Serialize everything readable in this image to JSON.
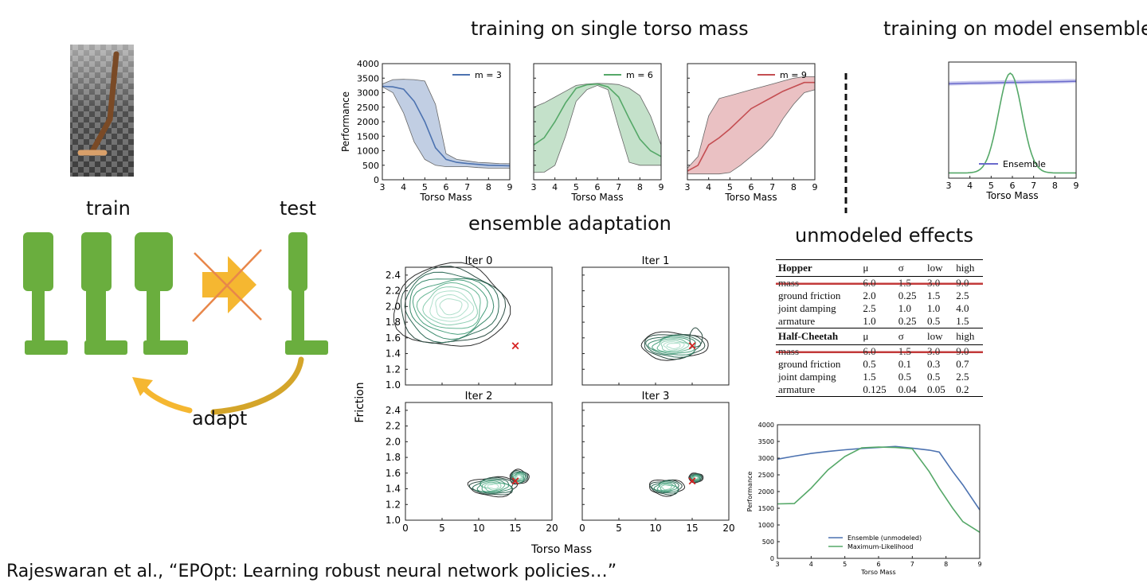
{
  "headings": {
    "single": "training on single torso mass",
    "ensemble": "training on model ensemble",
    "adaptation": "ensemble adaptation",
    "unmodeled": "unmodeled effects"
  },
  "diagram": {
    "train_label": "train",
    "test_label": "test",
    "adapt_label": "adapt",
    "colors": {
      "green": "#6aae3e",
      "orange": "#f5b731",
      "cross": "#e8874a",
      "gold": "#d4a52a"
    }
  },
  "citation": "Rajeswaran et al., “EPOpt: Learning robust neural network policies…”",
  "single_mass_charts": {
    "ylabel": "Performance",
    "xlabel": "Torso Mass",
    "xticks": [
      "3",
      "4",
      "5",
      "6",
      "7",
      "8",
      "9"
    ],
    "yticks": [
      "0",
      "500",
      "1000",
      "1500",
      "2000",
      "2500",
      "3000",
      "3500",
      "4000"
    ],
    "panels": [
      {
        "legend": "m = 3",
        "color": "#4c72b0"
      },
      {
        "legend": "m = 6",
        "color": "#55a868"
      },
      {
        "legend": "m = 9",
        "color": "#c44e52"
      }
    ]
  },
  "ensemble_chart": {
    "xlabel": "Torso Mass",
    "xticks": [
      "3",
      "4",
      "5",
      "6",
      "7",
      "8",
      "9"
    ],
    "legend": "Ensemble"
  },
  "adaptation_charts": {
    "ylabel": "Friction",
    "xlabel": "Torso Mass",
    "xticks": [
      "0",
      "5",
      "10",
      "15",
      "20"
    ],
    "yticks": [
      "1.0",
      "1.2",
      "1.4",
      "1.6",
      "1.8",
      "2.0",
      "2.2",
      "2.4"
    ],
    "panels": [
      "Iter 0",
      "Iter 1",
      "Iter 2",
      "Iter 3"
    ],
    "target": "×"
  },
  "params_table": {
    "cols": [
      "μ",
      "σ",
      "low",
      "high"
    ],
    "sections": [
      {
        "name": "Hopper",
        "rows": [
          {
            "label": "mass",
            "mu": "6.0",
            "sigma": "1.5",
            "low": "3.0",
            "high": "9.0",
            "struck": true
          },
          {
            "label": "ground friction",
            "mu": "2.0",
            "sigma": "0.25",
            "low": "1.5",
            "high": "2.5"
          },
          {
            "label": "joint damping",
            "mu": "2.5",
            "sigma": "1.0",
            "low": "1.0",
            "high": "4.0"
          },
          {
            "label": "armature",
            "mu": "1.0",
            "sigma": "0.25",
            "low": "0.5",
            "high": "1.5"
          }
        ]
      },
      {
        "name": "Half-Cheetah",
        "rows": [
          {
            "label": "mass",
            "mu": "6.0",
            "sigma": "1.5",
            "low": "3.0",
            "high": "9.0",
            "struck": true
          },
          {
            "label": "ground friction",
            "mu": "0.5",
            "sigma": "0.1",
            "low": "0.3",
            "high": "0.7"
          },
          {
            "label": "joint damping",
            "mu": "1.5",
            "sigma": "0.5",
            "low": "0.5",
            "high": "2.5"
          },
          {
            "label": "armature",
            "mu": "0.125",
            "sigma": "0.04",
            "low": "0.05",
            "high": "0.2"
          }
        ]
      }
    ]
  },
  "chart_data": [
    {
      "type": "line",
      "title": "m = 3",
      "xlabel": "Torso Mass",
      "ylabel": "Performance",
      "xlim": [
        3,
        9
      ],
      "ylim": [
        0,
        4000
      ],
      "x": [
        3,
        3.5,
        4,
        4.5,
        5,
        5.5,
        6,
        6.5,
        7,
        7.5,
        8,
        8.5,
        9
      ],
      "series": [
        {
          "name": "m = 3",
          "values": [
            3220,
            3200,
            3120,
            2700,
            2000,
            1100,
            700,
            600,
            560,
            530,
            500,
            490,
            480
          ],
          "low": [
            3200,
            3000,
            2300,
            1300,
            700,
            500,
            450,
            450,
            450,
            420,
            400,
            400,
            400
          ],
          "high": [
            3300,
            3450,
            3460,
            3450,
            3400,
            2600,
            900,
            700,
            650,
            600,
            580,
            560,
            550
          ]
        }
      ]
    },
    {
      "type": "line",
      "title": "m = 6",
      "xlabel": "Torso Mass",
      "ylabel": "Performance",
      "xlim": [
        3,
        9
      ],
      "ylim": [
        0,
        4000
      ],
      "x": [
        3,
        3.5,
        4,
        4.5,
        5,
        5.5,
        6,
        6.5,
        7,
        7.5,
        8,
        8.5,
        9
      ],
      "series": [
        {
          "name": "m = 6",
          "values": [
            1200,
            1450,
            2000,
            2650,
            3150,
            3270,
            3300,
            3200,
            2850,
            2100,
            1400,
            1000,
            800
          ],
          "low": [
            250,
            260,
            500,
            1500,
            2700,
            3100,
            3250,
            3100,
            1800,
            600,
            500,
            500,
            500
          ],
          "high": [
            2500,
            2650,
            2850,
            3050,
            3250,
            3300,
            3320,
            3310,
            3280,
            3150,
            2900,
            2200,
            1200
          ]
        }
      ]
    },
    {
      "type": "line",
      "title": "m = 9",
      "xlabel": "Torso Mass",
      "ylabel": "Performance",
      "xlim": [
        3,
        9
      ],
      "ylim": [
        0,
        4000
      ],
      "x": [
        3,
        3.5,
        4,
        4.5,
        5,
        5.5,
        6,
        6.5,
        7,
        7.5,
        8,
        8.5,
        9
      ],
      "series": [
        {
          "name": "m = 9",
          "values": [
            300,
            500,
            1200,
            1450,
            1750,
            2100,
            2450,
            2650,
            2850,
            3050,
            3200,
            3350,
            3350
          ],
          "low": [
            200,
            200,
            200,
            200,
            250,
            500,
            800,
            1100,
            1500,
            2100,
            2600,
            3000,
            3100
          ],
          "high": [
            400,
            800,
            2200,
            2800,
            2900,
            3000,
            3100,
            3200,
            3300,
            3400,
            3500,
            3550,
            3550
          ]
        }
      ]
    },
    {
      "type": "line",
      "title": "training on model ensemble",
      "xlabel": "Torso Mass",
      "xlim": [
        3,
        9
      ],
      "x": [
        3,
        3.5,
        4,
        4.5,
        5,
        5.5,
        5.9,
        6.3,
        6.7,
        7,
        7.5,
        8,
        8.5,
        9
      ],
      "series": [
        {
          "name": "Ensemble",
          "values": [
            3250,
            3260,
            3270,
            3275,
            3280,
            3290,
            3300,
            3300,
            3305,
            3310,
            3315,
            3320,
            3330,
            3340
          ]
        },
        {
          "name": "distribution",
          "values": [
            0.02,
            0.02,
            0.05,
            0.16,
            0.42,
            0.82,
            1.0,
            0.85,
            0.5,
            0.3,
            0.1,
            0.04,
            0.02,
            0.02
          ]
        }
      ]
    },
    {
      "type": "line",
      "title": "unmodeled effects",
      "xlabel": "Torso Mass",
      "ylabel": "Performance",
      "xlim": [
        3,
        9
      ],
      "ylim": [
        0,
        4000
      ],
      "x": [
        3,
        3.5,
        4,
        4.5,
        5,
        5.5,
        6,
        6.5,
        7,
        7.5,
        7.8,
        8.2,
        8.5,
        9
      ],
      "series": [
        {
          "name": "Ensemble (unmodeled)",
          "values": [
            2970,
            3060,
            3140,
            3200,
            3250,
            3290,
            3320,
            3350,
            3300,
            3240,
            3180,
            2600,
            2200,
            1450
          ]
        },
        {
          "name": "Maximum-Likelihood",
          "values": [
            1630,
            1640,
            2100,
            2650,
            3050,
            3310,
            3330,
            3320,
            3280,
            2600,
            2100,
            1500,
            1100,
            780
          ]
        }
      ]
    }
  ]
}
